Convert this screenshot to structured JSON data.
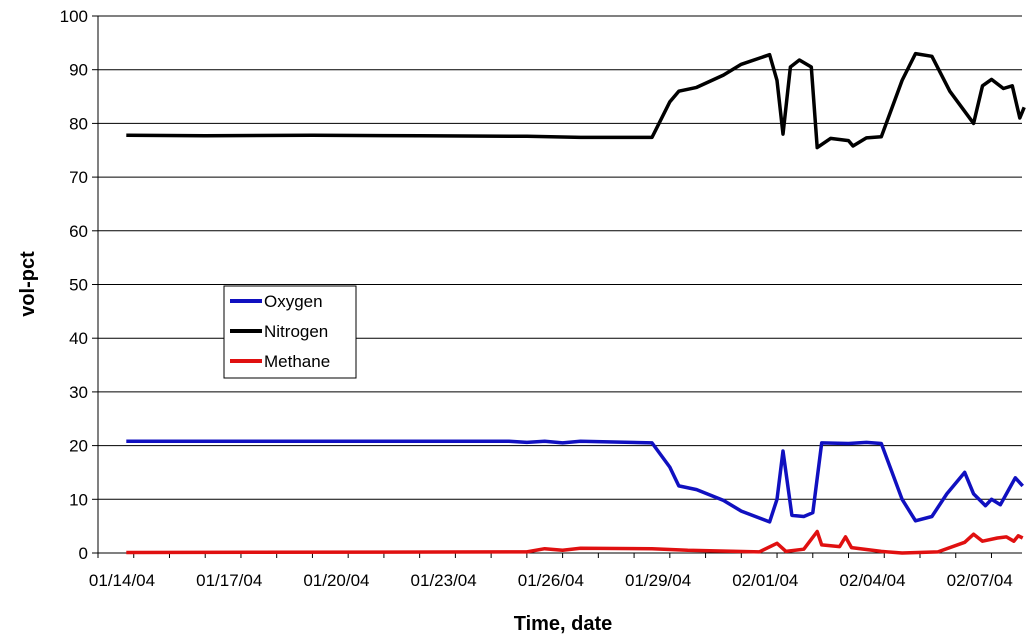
{
  "chart_data": {
    "type": "line",
    "title": "",
    "xlabel": "Time, date",
    "ylabel": "vol-pct",
    "ylim": [
      0,
      100
    ],
    "yticks": [
      0,
      10,
      20,
      30,
      40,
      50,
      60,
      70,
      80,
      90,
      100
    ],
    "xlim": [
      "2004-01-14",
      "2004-02-08"
    ],
    "xticks": [
      {
        "date": "2004-01-14",
        "label": "01/14/04"
      },
      {
        "date": "2004-01-17",
        "label": "01/17/04"
      },
      {
        "date": "2004-01-20",
        "label": "01/20/04"
      },
      {
        "date": "2004-01-23",
        "label": "01/23/04"
      },
      {
        "date": "2004-01-26",
        "label": "01/26/04"
      },
      {
        "date": "2004-01-29",
        "label": "01/29/04"
      },
      {
        "date": "2004-02-01",
        "label": "02/01/04"
      },
      {
        "date": "2004-02-04",
        "label": "02/04/04"
      },
      {
        "date": "2004-02-07",
        "label": "02/07/04"
      }
    ],
    "grid": "horizontal",
    "legend_position": "center-left",
    "series": [
      {
        "name": "Oxygen",
        "color": "#1010c0",
        "points": [
          [
            "2004-01-14T19:00",
            20.8
          ],
          [
            "2004-01-20T00:00",
            20.8
          ],
          [
            "2004-01-25T12:00",
            20.8
          ],
          [
            "2004-01-26T00:00",
            20.6
          ],
          [
            "2004-01-26T12:00",
            20.8
          ],
          [
            "2004-01-27T00:00",
            20.5
          ],
          [
            "2004-01-27T12:00",
            20.8
          ],
          [
            "2004-01-29T12:00",
            20.5
          ],
          [
            "2004-01-30T00:00",
            16.0
          ],
          [
            "2004-01-30T06:00",
            12.5
          ],
          [
            "2004-01-30T18:00",
            11.8
          ],
          [
            "2004-01-31T12:00",
            9.8
          ],
          [
            "2004-02-01T00:00",
            7.8
          ],
          [
            "2004-02-01T19:00",
            5.8
          ],
          [
            "2004-02-02T00:00",
            10.0
          ],
          [
            "2004-02-02T04:00",
            19.0
          ],
          [
            "2004-02-02T10:00",
            7.0
          ],
          [
            "2004-02-02T18:00",
            6.8
          ],
          [
            "2004-02-03T00:00",
            7.5
          ],
          [
            "2004-02-03T06:00",
            20.5
          ],
          [
            "2004-02-04T00:00",
            20.4
          ],
          [
            "2004-02-04T12:00",
            20.6
          ],
          [
            "2004-02-04T22:00",
            20.4
          ],
          [
            "2004-02-05T12:00",
            10.0
          ],
          [
            "2004-02-05T21:00",
            6.0
          ],
          [
            "2004-02-06T08:00",
            6.8
          ],
          [
            "2004-02-06T18:00",
            11.0
          ],
          [
            "2004-02-07T06:00",
            15.0
          ],
          [
            "2004-02-07T12:00",
            11.0
          ],
          [
            "2004-02-07T20:00",
            8.8
          ],
          [
            "2004-02-08T00:00",
            10.0
          ],
          [
            "2004-02-08T06:00",
            9.0
          ],
          [
            "2004-02-08T12:00",
            12.0
          ],
          [
            "2004-02-08T16:00",
            14.0
          ],
          [
            "2004-02-08T21:00",
            12.5
          ]
        ]
      },
      {
        "name": "Nitrogen",
        "color": "#000000",
        "points": [
          [
            "2004-01-14T19:00",
            77.8
          ],
          [
            "2004-01-17T00:00",
            77.7
          ],
          [
            "2004-01-20T00:00",
            77.8
          ],
          [
            "2004-01-23T00:00",
            77.7
          ],
          [
            "2004-01-26T00:00",
            77.6
          ],
          [
            "2004-01-27T12:00",
            77.4
          ],
          [
            "2004-01-29T12:00",
            77.4
          ],
          [
            "2004-01-30T00:00",
            84.0
          ],
          [
            "2004-01-30T06:00",
            86.0
          ],
          [
            "2004-01-30T18:00",
            86.7
          ],
          [
            "2004-01-31T12:00",
            89.0
          ],
          [
            "2004-02-01T00:00",
            91.0
          ],
          [
            "2004-02-01T19:00",
            92.8
          ],
          [
            "2004-02-02T00:00",
            88.0
          ],
          [
            "2004-02-02T04:00",
            78.0
          ],
          [
            "2004-02-02T09:00",
            90.5
          ],
          [
            "2004-02-02T15:00",
            91.8
          ],
          [
            "2004-02-02T23:00",
            90.5
          ],
          [
            "2004-02-03T03:00",
            75.5
          ],
          [
            "2004-02-03T12:00",
            77.2
          ],
          [
            "2004-02-04T00:00",
            76.8
          ],
          [
            "2004-02-04T03:00",
            75.8
          ],
          [
            "2004-02-04T12:00",
            77.3
          ],
          [
            "2004-02-04T22:00",
            77.5
          ],
          [
            "2004-02-05T12:00",
            88.0
          ],
          [
            "2004-02-05T21:00",
            93.0
          ],
          [
            "2004-02-06T08:00",
            92.5
          ],
          [
            "2004-02-06T20:00",
            86.0
          ],
          [
            "2004-02-07T12:00",
            80.0
          ],
          [
            "2004-02-07T18:00",
            87.0
          ],
          [
            "2004-02-08T00:00",
            88.2
          ],
          [
            "2004-02-08T08:00",
            86.5
          ],
          [
            "2004-02-08T14:00",
            87.0
          ],
          [
            "2004-02-08T19:00",
            81.0
          ],
          [
            "2004-02-08T22:00",
            83.0
          ]
        ]
      },
      {
        "name": "Methane",
        "color": "#e01010",
        "points": [
          [
            "2004-01-14T19:00",
            0.1
          ],
          [
            "2004-01-26T00:00",
            0.2
          ],
          [
            "2004-01-26T12:00",
            0.8
          ],
          [
            "2004-01-27T00:00",
            0.5
          ],
          [
            "2004-01-27T12:00",
            0.9
          ],
          [
            "2004-01-29T12:00",
            0.8
          ],
          [
            "2004-01-30T12:00",
            0.5
          ],
          [
            "2004-02-01T12:00",
            0.2
          ],
          [
            "2004-02-02T00:00",
            1.8
          ],
          [
            "2004-02-02T06:00",
            0.3
          ],
          [
            "2004-02-02T18:00",
            0.7
          ],
          [
            "2004-02-03T03:00",
            4.0
          ],
          [
            "2004-02-03T06:00",
            1.5
          ],
          [
            "2004-02-03T18:00",
            1.2
          ],
          [
            "2004-02-03T22:00",
            3.0
          ],
          [
            "2004-02-04T02:00",
            1.0
          ],
          [
            "2004-02-04T22:00",
            0.3
          ],
          [
            "2004-02-05T12:00",
            0.0
          ],
          [
            "2004-02-06T12:00",
            0.2
          ],
          [
            "2004-02-07T06:00",
            2.0
          ],
          [
            "2004-02-07T12:00",
            3.5
          ],
          [
            "2004-02-07T18:00",
            2.2
          ],
          [
            "2004-02-08T04:00",
            2.8
          ],
          [
            "2004-02-08T10:00",
            3.0
          ],
          [
            "2004-02-08T15:00",
            2.2
          ],
          [
            "2004-02-08T18:00",
            3.2
          ],
          [
            "2004-02-08T21:00",
            2.8
          ]
        ]
      }
    ]
  }
}
